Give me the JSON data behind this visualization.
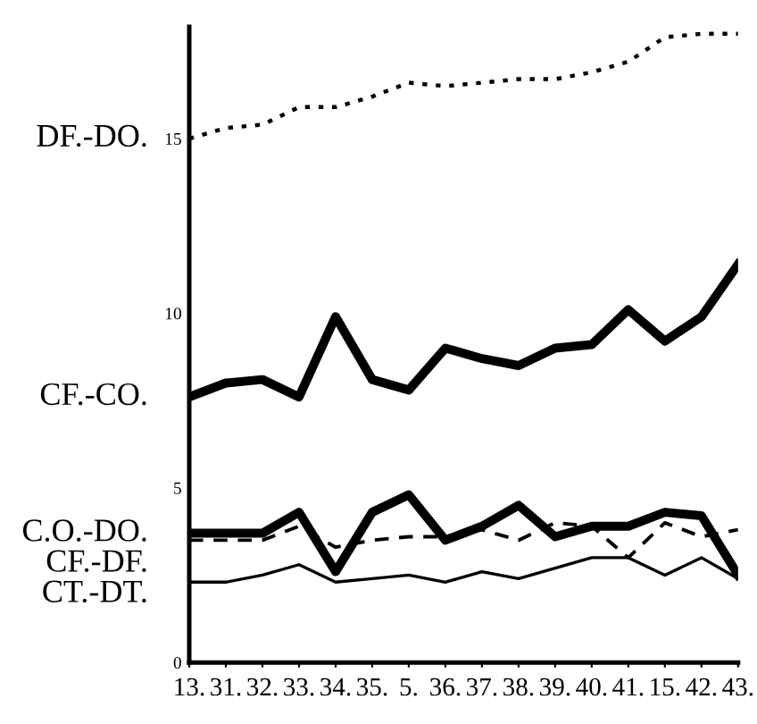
{
  "chart_data": {
    "type": "line",
    "categories": [
      "13.",
      "31.",
      "32.",
      "33.",
      "34.",
      "35.",
      "5.",
      "36.",
      "37.",
      "38.",
      "39.",
      "40.",
      "41.",
      "15.",
      "42.",
      "43."
    ],
    "series": [
      {
        "name": "DF.-DO.",
        "color": "#000000",
        "line_style": "dotted",
        "values": [
          15.0,
          15.3,
          15.4,
          15.9,
          15.9,
          16.2,
          16.6,
          16.5,
          16.6,
          16.7,
          16.7,
          16.9,
          17.2,
          17.9,
          18.0,
          18.0
        ]
      },
      {
        "name": "CF.-CO.",
        "color": "#000000",
        "line_style": "solid",
        "values": [
          7.6,
          8.0,
          8.1,
          7.6,
          9.9,
          8.1,
          7.8,
          9.0,
          8.7,
          8.5,
          9.0,
          9.1,
          10.1,
          9.2,
          9.9,
          11.4
        ]
      },
      {
        "name": "C.O.-DO.",
        "color": "#000000",
        "line_style": "solid",
        "values": [
          3.7,
          3.7,
          3.7,
          4.3,
          2.6,
          4.3,
          4.8,
          3.5,
          3.9,
          4.5,
          3.6,
          3.9,
          3.9,
          4.3,
          4.2,
          2.5
        ]
      },
      {
        "name": "CF.-DF.",
        "color": "#000000",
        "line_style": "dashed",
        "values": [
          3.5,
          3.5,
          3.5,
          3.9,
          3.3,
          3.5,
          3.6,
          3.6,
          3.8,
          3.5,
          4.0,
          3.9,
          3.0,
          4.0,
          3.6,
          3.8
        ]
      },
      {
        "name": "CT.-DT.",
        "color": "#000000",
        "line_style": "solid",
        "values": [
          2.3,
          2.3,
          2.5,
          2.8,
          2.3,
          2.4,
          2.5,
          2.3,
          2.6,
          2.4,
          2.7,
          3.0,
          3.0,
          2.5,
          3.0,
          2.4
        ]
      }
    ],
    "ylim": [
      0,
      18.2
    ],
    "yticks": [
      0,
      5,
      10,
      15
    ],
    "grid": false,
    "legend": false,
    "marker": "none"
  }
}
